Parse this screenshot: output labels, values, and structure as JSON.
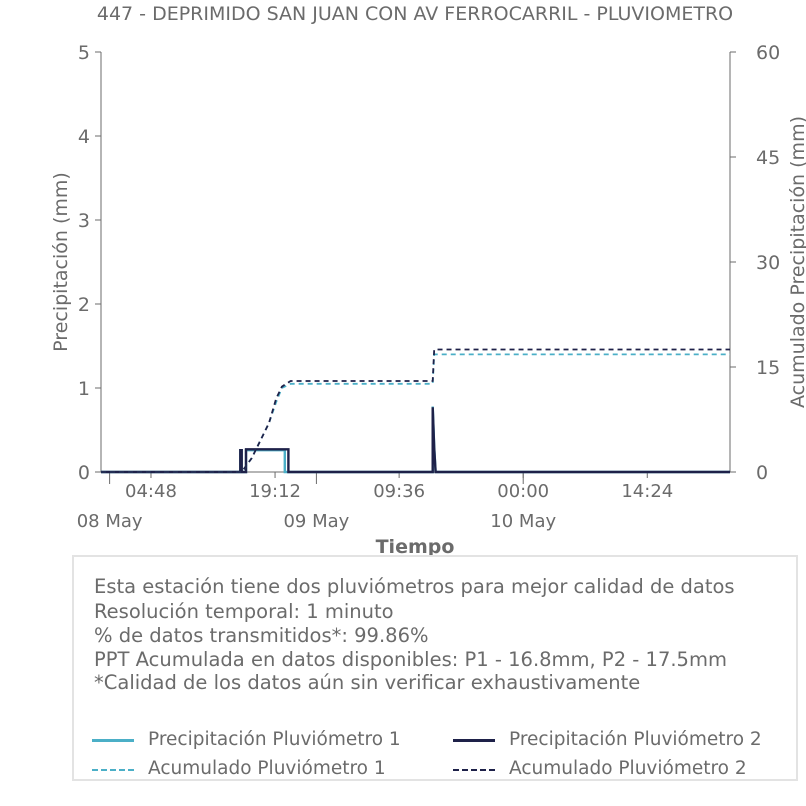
{
  "chart_data": {
    "type": "line",
    "title": "447 - DEPRIMIDO SAN JUAN CON AV FERROCARRIL - PLUVIOMETRO",
    "xlabel": "Tiempo",
    "ylabel": "Precipitación (mm)",
    "y2label": "Acumulado Precipitación (mm)",
    "ylim": [
      0,
      5
    ],
    "y2lim": [
      0,
      60
    ],
    "yticks": [
      "0",
      "1",
      "2",
      "3",
      "4",
      "5"
    ],
    "y2ticks": [
      "0",
      "15",
      "30",
      "45",
      "60"
    ],
    "xlim": [
      "2024-05-07 23:00",
      "2024-05-11 00:00"
    ],
    "xticks": [
      {
        "t": "2024-05-08 04:48",
        "label": "04:48"
      },
      {
        "t": "2024-05-08 19:12",
        "label": "19:12"
      },
      {
        "t": "2024-05-09 09:36",
        "label": "09:36"
      },
      {
        "t": "2024-05-10 00:00",
        "label": "00:00"
      },
      {
        "t": "2024-05-10 14:24",
        "label": "14:24"
      }
    ],
    "date_labels": [
      {
        "t": "2024-05-08 00:00",
        "label": "08 May"
      },
      {
        "t": "2024-05-09 00:00",
        "label": "09 May"
      },
      {
        "t": "2024-05-10 00:00",
        "label": "10 May"
      }
    ],
    "series": [
      {
        "name": "Precipitación Pluviómetro 1",
        "color": "#4bafc7",
        "style": "solid",
        "axis": "left",
        "points": [
          [
            "2024-05-07 23:00",
            0
          ],
          [
            "2024-05-08 15:10",
            0
          ],
          [
            "2024-05-08 15:10",
            0.26
          ],
          [
            "2024-05-08 15:20",
            0.26
          ],
          [
            "2024-05-08 15:20",
            0
          ],
          [
            "2024-05-08 15:50",
            0
          ],
          [
            "2024-05-08 15:50",
            0.26
          ],
          [
            "2024-05-08 20:20",
            0.26
          ],
          [
            "2024-05-08 20:20",
            0
          ],
          [
            "2024-05-09 13:30",
            0
          ],
          [
            "2024-05-09 13:30",
            0.78
          ],
          [
            "2024-05-09 13:40",
            0.3
          ],
          [
            "2024-05-09 13:50",
            0
          ],
          [
            "2024-05-11 00:00",
            0
          ]
        ]
      },
      {
        "name": "Precipitación Pluviómetro 2",
        "color": "#1e2149",
        "style": "solid",
        "axis": "left",
        "points": [
          [
            "2024-05-07 23:00",
            0
          ],
          [
            "2024-05-08 15:10",
            0
          ],
          [
            "2024-05-08 15:10",
            0.26
          ],
          [
            "2024-05-08 15:20",
            0.26
          ],
          [
            "2024-05-08 15:20",
            0
          ],
          [
            "2024-05-08 15:50",
            0
          ],
          [
            "2024-05-08 15:50",
            0.27
          ],
          [
            "2024-05-08 20:45",
            0.27
          ],
          [
            "2024-05-08 20:45",
            0
          ],
          [
            "2024-05-09 13:30",
            0
          ],
          [
            "2024-05-09 13:30",
            0.77
          ],
          [
            "2024-05-09 13:40",
            0.28
          ],
          [
            "2024-05-09 13:50",
            0
          ],
          [
            "2024-05-11 00:00",
            0
          ]
        ]
      },
      {
        "name": "Acumulado Pluviómetro 1",
        "color": "#4bafc7",
        "style": "dashed",
        "axis": "right",
        "points": [
          [
            "2024-05-07 23:00",
            0
          ],
          [
            "2024-05-08 15:20",
            0
          ],
          [
            "2024-05-08 16:30",
            2
          ],
          [
            "2024-05-08 17:30",
            4.5
          ],
          [
            "2024-05-08 18:30",
            7
          ],
          [
            "2024-05-08 19:20",
            10
          ],
          [
            "2024-05-08 20:00",
            12
          ],
          [
            "2024-05-08 21:00",
            12.6
          ],
          [
            "2024-05-09 13:30",
            12.6
          ],
          [
            "2024-05-09 13:40",
            16.8
          ],
          [
            "2024-05-11 00:00",
            16.8
          ]
        ]
      },
      {
        "name": "Acumulado Pluviómetro 2",
        "color": "#1e2149",
        "style": "dashed",
        "axis": "right",
        "points": [
          [
            "2024-05-07 23:00",
            0
          ],
          [
            "2024-05-08 15:20",
            0
          ],
          [
            "2024-05-08 16:30",
            2
          ],
          [
            "2024-05-08 17:30",
            4.5
          ],
          [
            "2024-05-08 18:30",
            7
          ],
          [
            "2024-05-08 19:20",
            10.5
          ],
          [
            "2024-05-08 20:00",
            12.2
          ],
          [
            "2024-05-08 21:00",
            13
          ],
          [
            "2024-05-09 13:30",
            13
          ],
          [
            "2024-05-09 13:40",
            17.5
          ],
          [
            "2024-05-11 00:00",
            17.5
          ]
        ]
      }
    ],
    "legend_position": "bottom"
  },
  "info": {
    "line1": "Esta estación tiene dos pluviómetros para mejor calidad de datos",
    "line2": "Resolución temporal: 1 minuto",
    "line3": "% de datos transmitidos*: 99.86%",
    "line4": "PPT Acumulada en datos disponibles: P1 - 16.8mm, P2 - 17.5mm",
    "line5": "*Calidad de los datos aún sin verificar exhaustivamente"
  },
  "legend": {
    "p1": "Precipitación Pluviómetro 1",
    "p2": "Precipitación Pluviómetro 2",
    "a1": "Acumulado Pluviómetro 1",
    "a2": "Acumulado Pluviómetro 2"
  },
  "colors": {
    "p1": "#4bafc7",
    "p2": "#1e2149",
    "axis": "#6b6b6b"
  }
}
